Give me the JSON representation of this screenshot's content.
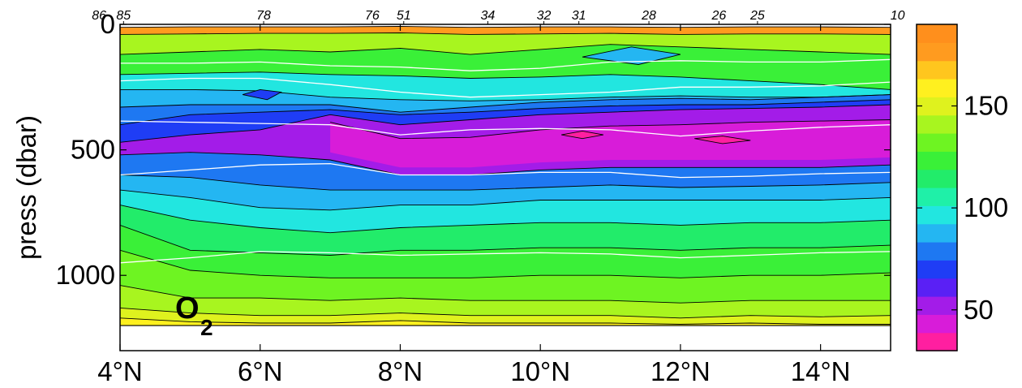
{
  "chart_data": {
    "type": "heatmap",
    "title": "",
    "xlabel": "",
    "ylabel": "press (dbar)",
    "x_ticks": [
      "4°N",
      "6°N",
      "8°N",
      "10°N",
      "12°N",
      "14°N"
    ],
    "x_tick_values": [
      4,
      6,
      8,
      10,
      12,
      14
    ],
    "xlim": [
      4,
      15
    ],
    "y_ticks": [
      "0",
      "500",
      "1000"
    ],
    "y_tick_values": [
      0,
      500,
      1000
    ],
    "ylim": [
      0,
      1300
    ],
    "data_bottom_pressure": 1200,
    "annotation": {
      "main": "O",
      "subscript": "2"
    },
    "colorbar": {
      "ticks": [
        "50",
        "100",
        "150"
      ],
      "tick_values": [
        50,
        100,
        150
      ],
      "range": [
        30,
        190
      ],
      "colors": [
        "#ff1fa0",
        "#d81cd9",
        "#a31ce8",
        "#5a20f5",
        "#1f3df5",
        "#1e78f2",
        "#24b6f2",
        "#22e6e0",
        "#1ff0a8",
        "#22ec6a",
        "#3af038",
        "#6ef422",
        "#a8f51f",
        "#dff21e",
        "#fff01f",
        "#ffc61e",
        "#ff9b1f",
        "#ff8f1c"
      ]
    },
    "stations": [
      {
        "label": "86",
        "x": 3.7
      },
      {
        "label": "85",
        "x": 4.05
      },
      {
        "label": "78",
        "x": 6.05
      },
      {
        "label": "76",
        "x": 7.6
      },
      {
        "label": "51",
        "x": 8.05
      },
      {
        "label": "34",
        "x": 9.25
      },
      {
        "label": "32",
        "x": 10.05
      },
      {
        "label": "31",
        "x": 10.55
      },
      {
        "label": "28",
        "x": 11.55
      },
      {
        "label": "26",
        "x": 12.55
      },
      {
        "label": "25",
        "x": 13.1
      },
      {
        "label": "10",
        "x": 15.1
      }
    ],
    "x_grid": [
      4,
      5,
      6,
      7,
      8,
      9,
      10,
      11,
      12,
      13,
      14,
      15
    ],
    "layers": [
      {
        "name": "surface",
        "color": "#ff9b1f",
        "depths": [
          12,
          10,
          10,
          10,
          8,
          12,
          10,
          10,
          12,
          10,
          10,
          12
        ]
      },
      {
        "name": "surface-transition",
        "color": "#a8f51f",
        "depths": [
          40,
          38,
          36,
          36,
          34,
          40,
          38,
          36,
          40,
          38,
          38,
          40
        ]
      },
      {
        "name": "upper-green",
        "color": "#3af038",
        "depths": [
          120,
          110,
          100,
          110,
          95,
          120,
          100,
          80,
          90,
          100,
          110,
          120
        ]
      },
      {
        "name": "upper-cyan",
        "color": "#22e6e0",
        "depths": [
          200,
          195,
          190,
          200,
          205,
          215,
          210,
          200,
          210,
          225,
          240,
          260
        ]
      },
      {
        "name": "upper-blue",
        "color": "#24b6f2",
        "depths": [
          260,
          260,
          265,
          290,
          300,
          305,
          300,
          290,
          285,
          290,
          290,
          280
        ]
      },
      {
        "name": "mid-blue",
        "color": "#1e78f2",
        "depths": [
          330,
          320,
          320,
          320,
          350,
          330,
          310,
          300,
          295,
          300,
          290,
          280
        ]
      },
      {
        "name": "blue",
        "color": "#1f3df5",
        "depths": [
          400,
          360,
          350,
          340,
          360,
          350,
          335,
          325,
          320,
          320,
          310,
          300
        ]
      },
      {
        "name": "purple",
        "color": "#a31ce8",
        "depths": [
          470,
          440,
          420,
          360,
          400,
          380,
          360,
          350,
          340,
          335,
          330,
          320
        ]
      },
      {
        "name": "omz-core",
        "color": "#d81cd9",
        "depths": [
          null,
          null,
          null,
          390,
          455,
          450,
          420,
          405,
          400,
          390,
          385,
          380
        ]
      },
      {
        "name": "below-omz",
        "color": "#1e78f2",
        "depths": [
          520,
          510,
          520,
          540,
          600,
          600,
          580,
          570,
          570,
          570,
          570,
          560
        ]
      },
      {
        "name": "cyan-deep",
        "color": "#24b6f2",
        "depths": [
          600,
          610,
          640,
          660,
          660,
          660,
          650,
          640,
          650,
          645,
          640,
          630
        ]
      },
      {
        "name": "teal-deep",
        "color": "#22e6e0",
        "depths": [
          660,
          690,
          730,
          740,
          720,
          720,
          700,
          700,
          700,
          700,
          700,
          690
        ]
      },
      {
        "name": "green-deep",
        "color": "#22ec6a",
        "depths": [
          720,
          780,
          810,
          830,
          810,
          800,
          790,
          790,
          800,
          790,
          790,
          780
        ]
      },
      {
        "name": "green2",
        "color": "#3af038",
        "depths": [
          800,
          900,
          910,
          920,
          900,
          900,
          890,
          890,
          900,
          890,
          890,
          880
        ]
      },
      {
        "name": "green3",
        "color": "#6ef422",
        "depths": [
          900,
          980,
          1000,
          1010,
          1010,
          1010,
          1000,
          1000,
          1010,
          1000,
          1000,
          990
        ]
      },
      {
        "name": "yellowgreen",
        "color": "#a8f51f",
        "depths": [
          1040,
          1090,
          1090,
          1100,
          1090,
          1100,
          1100,
          1100,
          1110,
          1100,
          1100,
          1100
        ]
      },
      {
        "name": "yellow",
        "color": "#dff21e",
        "depths": [
          1130,
          1150,
          1160,
          1160,
          1150,
          1160,
          1160,
          1160,
          1170,
          1160,
          1165,
          1160
        ]
      },
      {
        "name": "orange-bottom",
        "color": "#fff01f",
        "depths": [
          1170,
          1185,
          1190,
          1190,
          1180,
          1190,
          1190,
          1190,
          1195,
          1190,
          1195,
          1195
        ]
      }
    ],
    "patches": [
      {
        "name": "omz-center",
        "color": "#ff1fa0",
        "points": [
          [
            10.3,
            440
          ],
          [
            10.6,
            425
          ],
          [
            10.9,
            440
          ],
          [
            10.6,
            455
          ]
        ]
      },
      {
        "name": "omz-east",
        "color": "#ff1fa0",
        "points": [
          [
            12.2,
            455
          ],
          [
            12.6,
            445
          ],
          [
            13.0,
            462
          ],
          [
            12.6,
            475
          ]
        ]
      },
      {
        "name": "blue-pocket-6N",
        "color": "#1f3df5",
        "points": [
          [
            5.75,
            280
          ],
          [
            6.0,
            260
          ],
          [
            6.3,
            270
          ],
          [
            6.1,
            300
          ]
        ]
      },
      {
        "name": "blue-pocket-11N",
        "color": "#24b6f2",
        "points": [
          [
            10.6,
            130
          ],
          [
            11.3,
            90
          ],
          [
            12.0,
            120
          ],
          [
            11.4,
            160
          ]
        ]
      }
    ],
    "white_lines": [
      {
        "name": "isopycnal-a",
        "depths": [
          155,
          155,
          150,
          165,
          170,
          185,
          175,
          150,
          145,
          150,
          150,
          140
        ]
      },
      {
        "name": "isopycnal-b",
        "depths": [
          225,
          215,
          215,
          240,
          270,
          290,
          280,
          270,
          250,
          250,
          245,
          230
        ]
      },
      {
        "name": "isopycnal-c",
        "depths": [
          385,
          390,
          395,
          400,
          440,
          420,
          415,
          420,
          445,
          425,
          410,
          400
        ]
      },
      {
        "name": "isopycnal-d",
        "depths": [
          600,
          580,
          560,
          555,
          600,
          600,
          590,
          590,
          610,
          605,
          595,
          590
        ]
      },
      {
        "name": "isopycnal-e",
        "depths": [
          950,
          930,
          905,
          910,
          920,
          915,
          910,
          915,
          930,
          920,
          910,
          905
        ]
      }
    ]
  }
}
